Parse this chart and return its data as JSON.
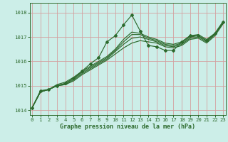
{
  "title": "Graphe pression niveau de la mer (hPa)",
  "bg_color": "#cceee8",
  "grid_color": "#d4a0a0",
  "line_color": "#2d6a2d",
  "ylim": [
    1013.8,
    1018.4
  ],
  "xlim": [
    -0.3,
    23.3
  ],
  "yticks": [
    1014,
    1015,
    1016,
    1017,
    1018
  ],
  "xticks": [
    0,
    1,
    2,
    3,
    4,
    5,
    6,
    7,
    8,
    9,
    10,
    11,
    12,
    13,
    14,
    15,
    16,
    17,
    18,
    19,
    20,
    21,
    22,
    23
  ],
  "series": [
    [
      1014.1,
      1014.75,
      1014.85,
      1015.0,
      1015.05,
      1015.2,
      1015.45,
      1015.65,
      1015.85,
      1016.05,
      1016.3,
      1016.55,
      1016.75,
      1016.85,
      1016.8,
      1016.75,
      1016.6,
      1016.55,
      1016.65,
      1016.9,
      1016.95,
      1016.75,
      1017.05,
      1017.55
    ],
    [
      1014.1,
      1014.75,
      1014.85,
      1015.0,
      1015.05,
      1015.25,
      1015.5,
      1015.7,
      1015.9,
      1016.1,
      1016.4,
      1016.7,
      1016.95,
      1017.0,
      1016.9,
      1016.8,
      1016.65,
      1016.6,
      1016.7,
      1016.95,
      1017.0,
      1016.8,
      1017.1,
      1017.6
    ],
    [
      1014.1,
      1014.75,
      1014.85,
      1015.0,
      1015.1,
      1015.3,
      1015.55,
      1015.75,
      1015.95,
      1016.15,
      1016.45,
      1016.8,
      1017.1,
      1017.1,
      1016.95,
      1016.85,
      1016.7,
      1016.65,
      1016.75,
      1017.0,
      1017.05,
      1016.85,
      1017.12,
      1017.62
    ],
    [
      1014.1,
      1014.75,
      1014.85,
      1015.05,
      1015.15,
      1015.35,
      1015.6,
      1015.8,
      1016.0,
      1016.2,
      1016.5,
      1016.9,
      1017.2,
      1017.15,
      1017.0,
      1016.9,
      1016.75,
      1016.7,
      1016.8,
      1017.05,
      1017.1,
      1016.9,
      1017.15,
      1017.65
    ],
    [
      1014.1,
      1014.8,
      1014.85,
      1015.0,
      1015.1,
      1015.3,
      1015.6,
      1015.9,
      1016.15,
      1016.8,
      1017.05,
      1017.5,
      1017.9,
      1017.25,
      1016.65,
      1016.6,
      1016.45,
      1016.45,
      1016.8,
      1017.05,
      1017.05,
      1016.85,
      1017.15,
      1017.6
    ]
  ],
  "has_marker": [
    false,
    false,
    false,
    false,
    true
  ]
}
